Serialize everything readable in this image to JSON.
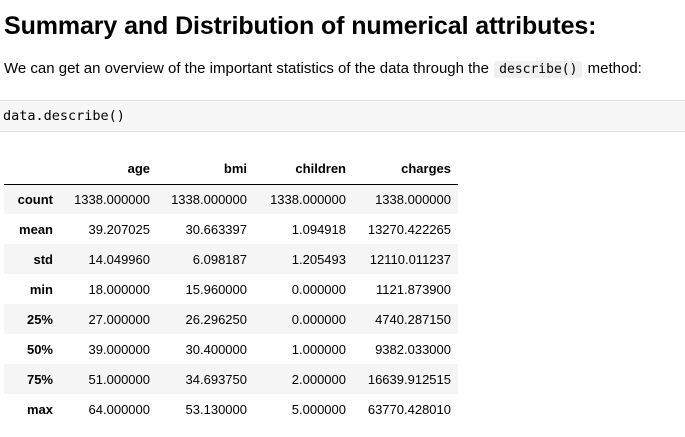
{
  "heading": "Summary and Distribution of numerical attributes:",
  "intro": {
    "before": "We can get an overview of the important statistics of the data through the",
    "code": "describe()",
    "after": "method:"
  },
  "code_cell": "data.describe()",
  "table": {
    "columns": [
      "",
      "age",
      "bmi",
      "children",
      "charges"
    ],
    "rows": [
      {
        "label": "count",
        "values": [
          "1338.000000",
          "1338.000000",
          "1338.000000",
          "1338.000000"
        ]
      },
      {
        "label": "mean",
        "values": [
          "39.207025",
          "30.663397",
          "1.094918",
          "13270.422265"
        ]
      },
      {
        "label": "std",
        "values": [
          "14.049960",
          "6.098187",
          "1.205493",
          "12110.011237"
        ]
      },
      {
        "label": "min",
        "values": [
          "18.000000",
          "15.960000",
          "0.000000",
          "1121.873900"
        ]
      },
      {
        "label": "25%",
        "values": [
          "27.000000",
          "26.296250",
          "0.000000",
          "4740.287150"
        ]
      },
      {
        "label": "50%",
        "values": [
          "39.000000",
          "30.400000",
          "1.000000",
          "9382.033000"
        ]
      },
      {
        "label": "75%",
        "values": [
          "51.000000",
          "34.693750",
          "2.000000",
          "16639.912515"
        ]
      },
      {
        "label": "max",
        "values": [
          "64.000000",
          "53.130000",
          "5.000000",
          "63770.428010"
        ]
      }
    ]
  }
}
